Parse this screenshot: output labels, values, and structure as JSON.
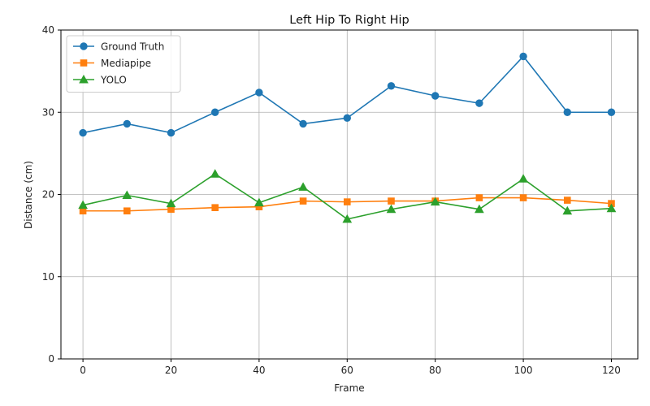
{
  "chart_data": {
    "type": "line",
    "title": "Left Hip To Right Hip",
    "xlabel": "Frame",
    "ylabel": "Distance (cm)",
    "x": [
      0,
      10,
      20,
      30,
      40,
      50,
      60,
      70,
      80,
      90,
      100,
      110,
      120
    ],
    "xlim": [
      -5,
      126
    ],
    "ylim": [
      0,
      40
    ],
    "xticks": [
      "0",
      "20",
      "40",
      "60",
      "80",
      "100",
      "120"
    ],
    "yticks": [
      "0",
      "10",
      "20",
      "30",
      "40"
    ],
    "grid": true,
    "legend_position": "top-left",
    "series": [
      {
        "name": "Ground Truth",
        "color": "#1f77b4",
        "marker": "circle",
        "values": [
          27.5,
          28.6,
          27.5,
          30.0,
          32.4,
          28.6,
          29.3,
          33.2,
          32.0,
          31.1,
          36.8,
          30.0,
          30.0
        ]
      },
      {
        "name": "Mediapipe",
        "color": "#ff7f0e",
        "marker": "square",
        "values": [
          18.0,
          18.0,
          18.2,
          18.4,
          18.5,
          19.2,
          19.1,
          19.2,
          19.2,
          19.6,
          19.6,
          19.3,
          18.9
        ]
      },
      {
        "name": "YOLO",
        "color": "#2ca02c",
        "marker": "triangle",
        "values": [
          18.7,
          19.9,
          18.9,
          22.5,
          19.0,
          20.9,
          17.0,
          18.2,
          19.1,
          18.2,
          21.9,
          18.0,
          18.3
        ]
      }
    ]
  }
}
